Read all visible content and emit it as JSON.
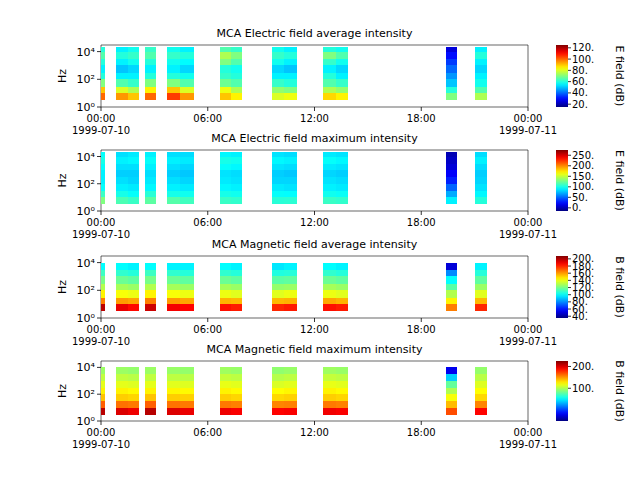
{
  "chart_data": [
    {
      "type": "heatmap",
      "title": "MCA  Electric field average intensity",
      "y_label": "Hz",
      "log": "y",
      "x": [
        [
          "1999-07-10T00:00",
          "1999-07-10T00:15"
        ],
        [
          "1999-07-10T00:51",
          "1999-07-10T01:30"
        ],
        [
          "1999-07-10T01:30",
          "1999-07-10T02:09"
        ],
        [
          "1999-07-10T02:30",
          "1999-07-10T03:06"
        ],
        [
          "1999-07-10T03:42",
          "1999-07-10T04:27"
        ],
        [
          "1999-07-10T04:27",
          "1999-07-10T05:12"
        ],
        [
          "1999-07-10T06:42",
          "1999-07-10T07:18"
        ],
        [
          "1999-07-10T07:18",
          "1999-07-10T07:54"
        ],
        [
          "1999-07-10T09:36",
          "1999-07-10T10:18"
        ],
        [
          "1999-07-10T10:18",
          "1999-07-10T11:00"
        ],
        [
          "1999-07-10T12:30",
          "1999-07-10T13:12"
        ],
        [
          "1999-07-10T13:12",
          "1999-07-10T13:54"
        ],
        [
          "1999-07-10T19:24",
          "1999-07-10T20:00"
        ],
        [
          "1999-07-10T21:00",
          "1999-07-10T21:42"
        ]
      ],
      "y_bins": [
        3,
        10,
        30,
        100,
        300,
        1000,
        3000,
        10000,
        20000
      ],
      "cells": [
        [
          100,
          90,
          70,
          60,
          55,
          60,
          65,
          60
        ],
        [
          95,
          80,
          65,
          55,
          50,
          55,
          60,
          55
        ],
        [
          90,
          75,
          62,
          55,
          52,
          58,
          62,
          58
        ],
        [
          100,
          85,
          70,
          60,
          55,
          60,
          65,
          62
        ],
        [
          105,
          90,
          70,
          60,
          55,
          58,
          62,
          58
        ],
        [
          95,
          80,
          65,
          58,
          52,
          56,
          60,
          55
        ],
        [
          90,
          82,
          68,
          62,
          60,
          70,
          75,
          65
        ],
        [
          85,
          75,
          65,
          60,
          58,
          65,
          70,
          62
        ],
        [
          80,
          72,
          62,
          55,
          52,
          58,
          62,
          58
        ],
        [
          82,
          70,
          60,
          55,
          50,
          55,
          60,
          55
        ],
        [
          88,
          75,
          65,
          60,
          55,
          62,
          70,
          60
        ],
        [
          85,
          72,
          62,
          55,
          52,
          58,
          65,
          58
        ],
        [
          70,
          60,
          50,
          45,
          40,
          35,
          30,
          25
        ],
        [
          75,
          65,
          58,
          55,
          52,
          55,
          60,
          55
        ]
      ],
      "xlim": [
        "1999-07-10T00:00",
        "1999-07-11T00:00"
      ],
      "xticks": [
        {
          "value": "1999-07-10T00:00",
          "label": "00:00\n1999-07-10"
        },
        {
          "value": "1999-07-10T06:00",
          "label": "06:00"
        },
        {
          "value": "1999-07-10T12:00",
          "label": "12:00"
        },
        {
          "value": "1999-07-10T18:00",
          "label": "18:00"
        },
        {
          "value": "1999-07-11T00:00",
          "label": "00:00\n1999-07-11"
        }
      ],
      "ylim": [
        1,
        30000
      ],
      "yticks": [
        {
          "value": 1,
          "label": "10⁰"
        },
        {
          "value": 100,
          "label": "10²"
        },
        {
          "value": 10000,
          "label": "10⁴"
        }
      ],
      "colorbar": {
        "label": "E field (dB)",
        "range": [
          15,
          125
        ],
        "ticks": [
          {
            "value": 20,
            "label": "20."
          },
          {
            "value": 40,
            "label": "40."
          },
          {
            "value": 60,
            "label": "60."
          },
          {
            "value": 80,
            "label": "80."
          },
          {
            "value": 100,
            "label": "100."
          },
          {
            "value": 120,
            "label": "120."
          }
        ]
      }
    },
    {
      "type": "heatmap",
      "title": "MCA  Electric field maximum intensity",
      "y_label": "Hz",
      "log": "y",
      "x": [
        [
          "1999-07-10T00:00",
          "1999-07-10T00:15"
        ],
        [
          "1999-07-10T00:51",
          "1999-07-10T01:30"
        ],
        [
          "1999-07-10T01:30",
          "1999-07-10T02:09"
        ],
        [
          "1999-07-10T02:30",
          "1999-07-10T03:06"
        ],
        [
          "1999-07-10T03:42",
          "1999-07-10T04:27"
        ],
        [
          "1999-07-10T04:27",
          "1999-07-10T05:12"
        ],
        [
          "1999-07-10T06:42",
          "1999-07-10T07:18"
        ],
        [
          "1999-07-10T07:18",
          "1999-07-10T07:54"
        ],
        [
          "1999-07-10T09:36",
          "1999-07-10T10:18"
        ],
        [
          "1999-07-10T10:18",
          "1999-07-10T11:00"
        ],
        [
          "1999-07-10T12:30",
          "1999-07-10T13:12"
        ],
        [
          "1999-07-10T13:12",
          "1999-07-10T13:54"
        ],
        [
          "1999-07-10T19:24",
          "1999-07-10T20:00"
        ],
        [
          "1999-07-10T21:00",
          "1999-07-10T21:42"
        ]
      ],
      "y_bins": [
        3,
        10,
        30,
        100,
        300,
        1000,
        3000,
        10000,
        20000
      ],
      "cells": [
        [
          130,
          110,
          95,
          90,
          90,
          95,
          100,
          95
        ],
        [
          115,
          100,
          90,
          85,
          80,
          85,
          90,
          85
        ],
        [
          110,
          95,
          88,
          82,
          80,
          85,
          92,
          88
        ],
        [
          120,
          105,
          92,
          88,
          85,
          90,
          95,
          90
        ],
        [
          118,
          100,
          90,
          85,
          80,
          85,
          90,
          85
        ],
        [
          112,
          98,
          88,
          82,
          78,
          82,
          88,
          84
        ],
        [
          110,
          100,
          92,
          88,
          86,
          95,
          100,
          92
        ],
        [
          108,
          98,
          90,
          86,
          84,
          92,
          98,
          90
        ],
        [
          105,
          95,
          88,
          82,
          80,
          86,
          92,
          86
        ],
        [
          106,
          94,
          86,
          82,
          78,
          84,
          90,
          84
        ],
        [
          110,
          98,
          90,
          86,
          82,
          88,
          95,
          88
        ],
        [
          108,
          96,
          88,
          84,
          80,
          86,
          92,
          86
        ],
        [
          90,
          70,
          50,
          30,
          20,
          10,
          5,
          0
        ],
        [
          104,
          92,
          86,
          82,
          80,
          84,
          90,
          84
        ]
      ],
      "xlim": [
        "1999-07-10T00:00",
        "1999-07-11T00:00"
      ],
      "xticks": [
        {
          "value": "1999-07-10T00:00",
          "label": "00:00\n1999-07-10"
        },
        {
          "value": "1999-07-10T06:00",
          "label": "06:00"
        },
        {
          "value": "1999-07-10T12:00",
          "label": "12:00"
        },
        {
          "value": "1999-07-10T18:00",
          "label": "18:00"
        },
        {
          "value": "1999-07-11T00:00",
          "label": "00:00\n1999-07-11"
        }
      ],
      "ylim": [
        1,
        30000
      ],
      "yticks": [
        {
          "value": 1,
          "label": "10⁰"
        },
        {
          "value": 100,
          "label": "10²"
        },
        {
          "value": 10000,
          "label": "10⁴"
        }
      ],
      "colorbar": {
        "label": "E field (dB)",
        "range": [
          -15,
          275
        ],
        "ticks": [
          {
            "value": 0,
            "label": "0."
          },
          {
            "value": 50,
            "label": "50."
          },
          {
            "value": 100,
            "label": "100."
          },
          {
            "value": 150,
            "label": "150."
          },
          {
            "value": 200,
            "label": "200."
          },
          {
            "value": 250,
            "label": "250."
          }
        ]
      }
    },
    {
      "type": "heatmap",
      "title": "MCA  Magnetic field average intensity",
      "y_label": "Hz",
      "log": "y",
      "x": [
        [
          "1999-07-10T00:00",
          "1999-07-10T00:15"
        ],
        [
          "1999-07-10T00:51",
          "1999-07-10T01:30"
        ],
        [
          "1999-07-10T01:30",
          "1999-07-10T02:09"
        ],
        [
          "1999-07-10T02:30",
          "1999-07-10T03:06"
        ],
        [
          "1999-07-10T03:42",
          "1999-07-10T04:27"
        ],
        [
          "1999-07-10T04:27",
          "1999-07-10T05:12"
        ],
        [
          "1999-07-10T06:42",
          "1999-07-10T07:18"
        ],
        [
          "1999-07-10T07:18",
          "1999-07-10T07:54"
        ],
        [
          "1999-07-10T09:36",
          "1999-07-10T10:18"
        ],
        [
          "1999-07-10T10:18",
          "1999-07-10T11:00"
        ],
        [
          "1999-07-10T12:30",
          "1999-07-10T13:12"
        ],
        [
          "1999-07-10T13:12",
          "1999-07-10T13:54"
        ],
        [
          "1999-07-10T19:24",
          "1999-07-10T20:00"
        ],
        [
          "1999-07-10T21:00",
          "1999-07-10T21:42"
        ]
      ],
      "y_bins": [
        3,
        10,
        30,
        100,
        300,
        1000,
        3000,
        10000,
        20000
      ],
      "cells": [
        [
          198,
          165,
          145,
          130,
          120,
          110,
          100,
          null
        ],
        [
          190,
          160,
          142,
          128,
          118,
          108,
          100,
          null
        ],
        [
          185,
          158,
          140,
          126,
          116,
          106,
          98,
          null
        ],
        [
          195,
          165,
          145,
          130,
          120,
          110,
          100,
          null
        ],
        [
          188,
          160,
          142,
          128,
          118,
          108,
          98,
          null
        ],
        [
          186,
          158,
          140,
          126,
          116,
          106,
          98,
          null
        ],
        [
          184,
          156,
          140,
          128,
          118,
          108,
          100,
          null
        ],
        [
          182,
          155,
          138,
          126,
          116,
          106,
          98,
          null
        ],
        [
          180,
          155,
          138,
          125,
          115,
          105,
          96,
          null
        ],
        [
          182,
          156,
          140,
          126,
          116,
          106,
          98,
          null
        ],
        [
          184,
          158,
          140,
          128,
          118,
          108,
          100,
          null
        ],
        [
          182,
          156,
          138,
          126,
          116,
          106,
          98,
          null
        ],
        [
          165,
          145,
          130,
          115,
          100,
          80,
          50,
          null
        ],
        [
          180,
          155,
          138,
          126,
          116,
          106,
          98,
          null
        ]
      ],
      "xlim": [
        "1999-07-10T00:00",
        "1999-07-11T00:00"
      ],
      "xticks": [
        {
          "value": "1999-07-10T00:00",
          "label": "00:00\n1999-07-10"
        },
        {
          "value": "1999-07-10T06:00",
          "label": "06:00"
        },
        {
          "value": "1999-07-10T12:00",
          "label": "12:00"
        },
        {
          "value": "1999-07-10T18:00",
          "label": "18:00"
        },
        {
          "value": "1999-07-11T00:00",
          "label": "00:00\n1999-07-11"
        }
      ],
      "ylim": [
        1,
        30000
      ],
      "yticks": [
        {
          "value": 1,
          "label": "10⁰"
        },
        {
          "value": 100,
          "label": "10²"
        },
        {
          "value": 10000,
          "label": "10⁴"
        }
      ],
      "colorbar": {
        "label": "B field (dB)",
        "range": [
          35,
          208
        ],
        "ticks": [
          {
            "value": 40,
            "label": "40."
          },
          {
            "value": 60,
            "label": "60."
          },
          {
            "value": 80,
            "label": "80."
          },
          {
            "value": 100,
            "label": "100."
          },
          {
            "value": 120,
            "label": "120."
          },
          {
            "value": 140,
            "label": "140."
          },
          {
            "value": 160,
            "label": "160."
          },
          {
            "value": 180,
            "label": "180."
          },
          {
            "value": 200,
            "label": "200."
          }
        ]
      }
    },
    {
      "type": "heatmap",
      "title": "MCA  Magnetic field maximum intensity",
      "y_label": "Hz",
      "log": "y",
      "x": [
        [
          "1999-07-10T00:00",
          "1999-07-10T00:15"
        ],
        [
          "1999-07-10T00:51",
          "1999-07-10T01:30"
        ],
        [
          "1999-07-10T01:30",
          "1999-07-10T02:09"
        ],
        [
          "1999-07-10T02:30",
          "1999-07-10T03:06"
        ],
        [
          "1999-07-10T03:42",
          "1999-07-10T04:27"
        ],
        [
          "1999-07-10T04:27",
          "1999-07-10T05:12"
        ],
        [
          "1999-07-10T06:42",
          "1999-07-10T07:18"
        ],
        [
          "1999-07-10T07:18",
          "1999-07-10T07:54"
        ],
        [
          "1999-07-10T09:36",
          "1999-07-10T10:18"
        ],
        [
          "1999-07-10T10:18",
          "1999-07-10T11:00"
        ],
        [
          "1999-07-10T12:30",
          "1999-07-10T13:12"
        ],
        [
          "1999-07-10T13:12",
          "1999-07-10T13:54"
        ],
        [
          "1999-07-10T19:24",
          "1999-07-10T20:00"
        ],
        [
          "1999-07-10T21:00",
          "1999-07-10T21:42"
        ]
      ],
      "y_bins": [
        3,
        10,
        30,
        100,
        300,
        1000,
        3000,
        10000,
        20000
      ],
      "cells": [
        [
          210,
          165,
          138,
          125,
          115,
          105,
          95,
          null
        ],
        [
          200,
          160,
          135,
          125,
          115,
          105,
          95,
          null
        ],
        [
          195,
          158,
          133,
          123,
          113,
          103,
          93,
          null
        ],
        [
          210,
          165,
          138,
          125,
          115,
          105,
          95,
          null
        ],
        [
          200,
          160,
          135,
          124,
          114,
          104,
          94,
          null
        ],
        [
          196,
          158,
          134,
          123,
          113,
          103,
          93,
          null
        ],
        [
          195,
          158,
          135,
          125,
          116,
          106,
          96,
          null
        ],
        [
          192,
          156,
          133,
          123,
          114,
          104,
          94,
          null
        ],
        [
          190,
          155,
          132,
          122,
          112,
          102,
          92,
          null
        ],
        [
          192,
          156,
          134,
          124,
          114,
          104,
          94,
          null
        ],
        [
          194,
          158,
          135,
          125,
          116,
          106,
          96,
          null
        ],
        [
          192,
          156,
          133,
          123,
          114,
          104,
          94,
          null
        ],
        [
          170,
          140,
          120,
          100,
          80,
          40,
          -20,
          null
        ],
        [
          190,
          155,
          132,
          122,
          113,
          103,
          93,
          null
        ]
      ],
      "xlim": [
        "1999-07-10T00:00",
        "1999-07-11T00:00"
      ],
      "xticks": [
        {
          "value": "1999-07-10T00:00",
          "label": "00:00\n1999-07-10"
        },
        {
          "value": "1999-07-10T06:00",
          "label": "06:00"
        },
        {
          "value": "1999-07-10T12:00",
          "label": "12:00"
        },
        {
          "value": "1999-07-10T18:00",
          "label": "18:00"
        },
        {
          "value": "1999-07-11T00:00",
          "label": "00:00\n1999-07-11"
        }
      ],
      "ylim": [
        1,
        30000
      ],
      "yticks": [
        {
          "value": 1,
          "label": "10⁰"
        },
        {
          "value": 100,
          "label": "10²"
        },
        {
          "value": 10000,
          "label": "10⁴"
        }
      ],
      "colorbar": {
        "label": "B field (dB)",
        "range": [
          -50,
          225
        ],
        "ticks": [
          {
            "value": 100,
            "label": "100."
          },
          {
            "value": 200,
            "label": "200."
          }
        ]
      }
    }
  ]
}
